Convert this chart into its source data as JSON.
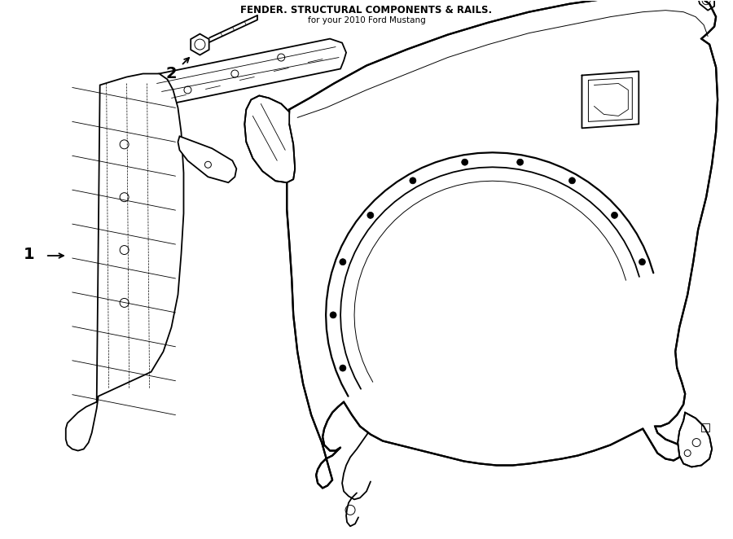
{
  "title": "FENDER. STRUCTURAL COMPONENTS & RAILS.",
  "subtitle": "for your 2010 Ford Mustang",
  "background_color": "#ffffff",
  "line_color": "#000000",
  "line_width": 1.3,
  "fig_width": 9.0,
  "fig_height": 6.62,
  "label_1_text": "1",
  "label_2_text": "2"
}
